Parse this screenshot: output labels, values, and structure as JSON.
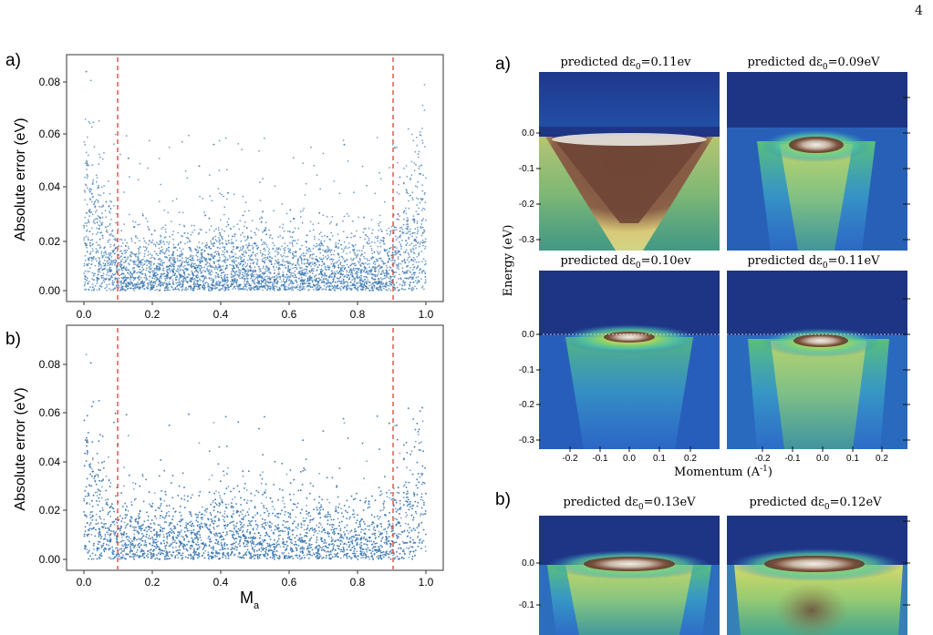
{
  "page_number": "4",
  "left_figure": {
    "panels": [
      {
        "label": "a)",
        "ylabel": "Absolute error (eV)",
        "yticks": [
          "0.00",
          "0.02",
          "0.04",
          "0.06",
          "0.08"
        ],
        "xticks": [
          "0.0",
          "0.2",
          "0.4",
          "0.6",
          "0.8",
          "1.0"
        ],
        "xlabel": ""
      },
      {
        "label": "b)",
        "ylabel": "Absolute error (eV)",
        "yticks": [
          "0.00",
          "0.02",
          "0.04",
          "0.06",
          "0.08"
        ],
        "xticks": [
          "0.0",
          "0.2",
          "0.4",
          "0.6",
          "0.8",
          "1.0"
        ],
        "xlabel_main": "M",
        "xlabel_sub": "a"
      }
    ]
  },
  "right_figure": {
    "group_a_label": "a)",
    "group_b_label": "b)",
    "energy_label": "Energy (eV)",
    "momentum_label": "Momentum (A",
    "momentum_label_sup": "-1",
    "momentum_label_end": ")",
    "energy_ticks": [
      "0.0",
      "-0.1",
      "-0.2",
      "-0.3"
    ],
    "energy_ticks_short": [
      "0.0",
      "-0.1"
    ],
    "momentum_ticks": [
      "-0.2",
      "-0.1",
      "0.0",
      "0.1",
      "0.2"
    ],
    "titles": [
      {
        "prefix": "predicted dε",
        "sub": "0",
        "suffix": "=0.11ev"
      },
      {
        "prefix": "predicted dε",
        "sub": "0",
        "suffix": "=0.09eV"
      },
      {
        "prefix": "predicted dε",
        "sub": "0",
        "suffix": "=0.10ev"
      },
      {
        "prefix": "predicted dε",
        "sub": "0",
        "suffix": "=0.11eV"
      },
      {
        "prefix": "predicted dε",
        "sub": "0",
        "suffix": "=0.13eV"
      },
      {
        "prefix": "predicted dε",
        "sub": "0",
        "suffix": "=0.12eV"
      }
    ]
  },
  "colors": {
    "scatter": "#3a78b0",
    "guide": "#e03020",
    "arpes_bg": "#1e3484"
  }
}
